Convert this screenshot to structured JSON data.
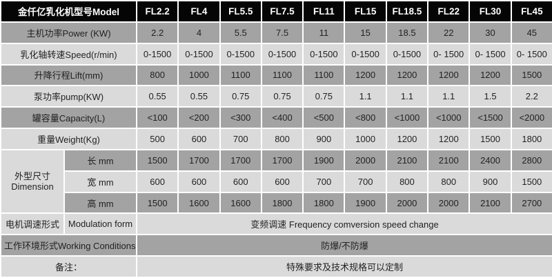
{
  "header": {
    "label": "金仟亿乳化机型号Model",
    "models": [
      "FL2.2",
      "FL4",
      "FL5.5",
      "FL7.5",
      "FL11",
      "FL15",
      "FL18.5",
      "FL22",
      "FL30",
      "FL45"
    ]
  },
  "rows": [
    {
      "label": "主机功率Power (KW)",
      "values": [
        "2.2",
        "4",
        "5.5",
        "7.5",
        "11",
        "15",
        "18.5",
        "22",
        "30",
        "45"
      ]
    },
    {
      "label": "乳化轴转速Speed(r/min)",
      "values": [
        "0-1500",
        "0-1500",
        "0-1500",
        "0-1500",
        "0-1500",
        "0-1500",
        "0-1500",
        "0- 1500",
        "0- 1500",
        "0- 1500"
      ]
    },
    {
      "label": "升降行程Lift(mm)",
      "values": [
        "800",
        "1000",
        "1100",
        "1100",
        "1100",
        "1200",
        "1200",
        "1200",
        "1200",
        "1500"
      ]
    },
    {
      "label": "泵功率pump(KW)",
      "values": [
        "0.55",
        "0.55",
        "0.75",
        "0.75",
        "0.75",
        "1.1",
        "1.1",
        "1.1",
        "1.5",
        "2.2"
      ]
    },
    {
      "label": "罐容量Capacity(L)",
      "values": [
        "<100",
        "<200",
        "<300",
        "<400",
        "<500",
        "<800",
        "<1000",
        "<1000",
        "<1500",
        "<2000"
      ]
    },
    {
      "label": "重量Weight(Kg)",
      "values": [
        "500",
        "600",
        "700",
        "800",
        "900",
        "1000",
        "1200",
        "1200",
        "1500",
        "1800"
      ]
    }
  ],
  "dimension": {
    "label_cn": "外型尺寸",
    "label_en": "Dimension",
    "subrows": [
      {
        "label": "长 mm",
        "values": [
          "1500",
          "1700",
          "1700",
          "1700",
          "1900",
          "2000",
          "2100",
          "2100",
          "2400",
          "2800"
        ]
      },
      {
        "label": "宽 mm",
        "values": [
          "600",
          "600",
          "600",
          "600",
          "700",
          "700",
          "800",
          "800",
          "900",
          "1500"
        ]
      },
      {
        "label": "高 mm",
        "values": [
          "1500",
          "1600",
          "1600",
          "1800",
          "1800",
          "1900",
          "2000",
          "2000",
          "2100",
          "2700"
        ]
      }
    ]
  },
  "modulation": {
    "label_cn": "电机调速形式",
    "label_en": "Modulation form",
    "value": "变频调速 Frequency comversion speed change"
  },
  "working": {
    "label": "工作环境形式Working Conditions",
    "value": "防爆/不防爆"
  },
  "remarks": {
    "label": "备注：",
    "value": "特殊要求及技术规格可以定制"
  },
  "colors": {
    "header_bg": "#050505",
    "dark_row": "#a3a3a3",
    "light_row": "#dadada"
  }
}
